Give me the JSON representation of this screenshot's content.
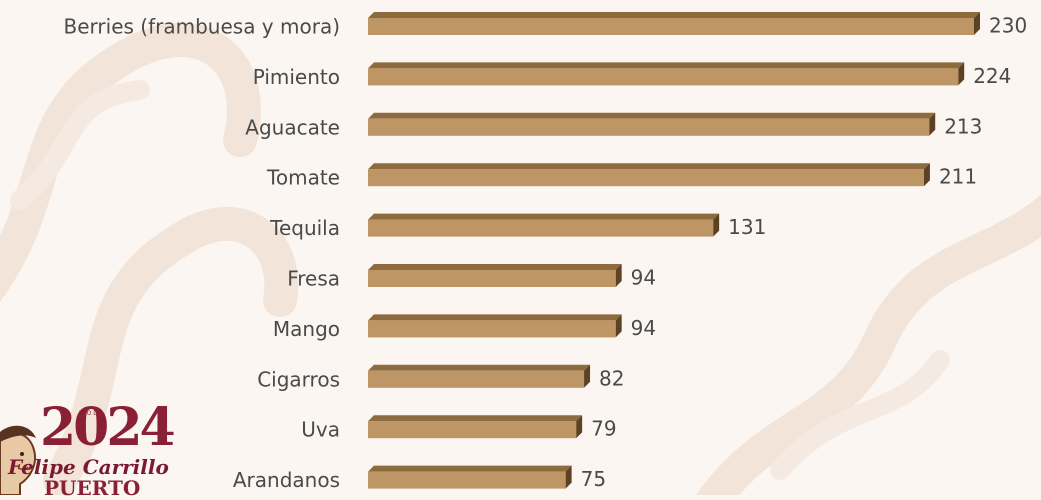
{
  "chart_data": {
    "type": "bar",
    "orientation": "horizontal",
    "categories": [
      "Berries (frambuesa y mora)",
      "Pimiento",
      "Aguacate",
      "Tomate",
      "Tequila",
      "Fresa",
      "Mango",
      "Cigarros",
      "Uva",
      "Arandanos"
    ],
    "values": [
      230,
      224,
      213,
      211,
      131,
      94,
      94,
      82,
      79,
      75
    ],
    "value_labels": [
      "230",
      "224",
      "213",
      "211",
      "131",
      "94",
      "94",
      "82",
      "79",
      "75"
    ],
    "title": "",
    "xlabel": "",
    "ylabel": "",
    "xlim": [
      0,
      230
    ],
    "grid": false,
    "bar_color": "#be9565",
    "bar_top_color": "#8e6a3f",
    "bar_end_color": "#5c4122"
  },
  "logo": {
    "year": "2024",
    "year_tag": "AÑO DE",
    "name": "Felipe Carrillo",
    "subtitle": "PUERTO",
    "color": "#8a2035"
  },
  "background": {
    "color": "#fbf6f1",
    "pattern_color": "#f3e6dc"
  }
}
